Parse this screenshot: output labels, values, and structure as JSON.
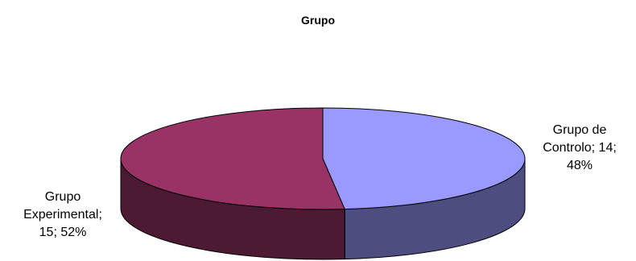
{
  "chart_data": {
    "type": "pie",
    "title": "Grupo",
    "slices": [
      {
        "category": "Grupo de Controlo",
        "value": 14,
        "percent": "48%",
        "label_lines": [
          "Grupo de",
          "Controlo; 14;",
          "48%"
        ],
        "top_color": "#9999ff",
        "side_color": "#4d4d80"
      },
      {
        "category": "Grupo Experimental",
        "value": 15,
        "percent": "52%",
        "label_lines": [
          "Grupo",
          "Experimental;",
          "15; 52%"
        ],
        "top_color": "#993366",
        "side_color": "#4d1a33"
      }
    ],
    "legend": "none",
    "style": "3d-pie"
  }
}
